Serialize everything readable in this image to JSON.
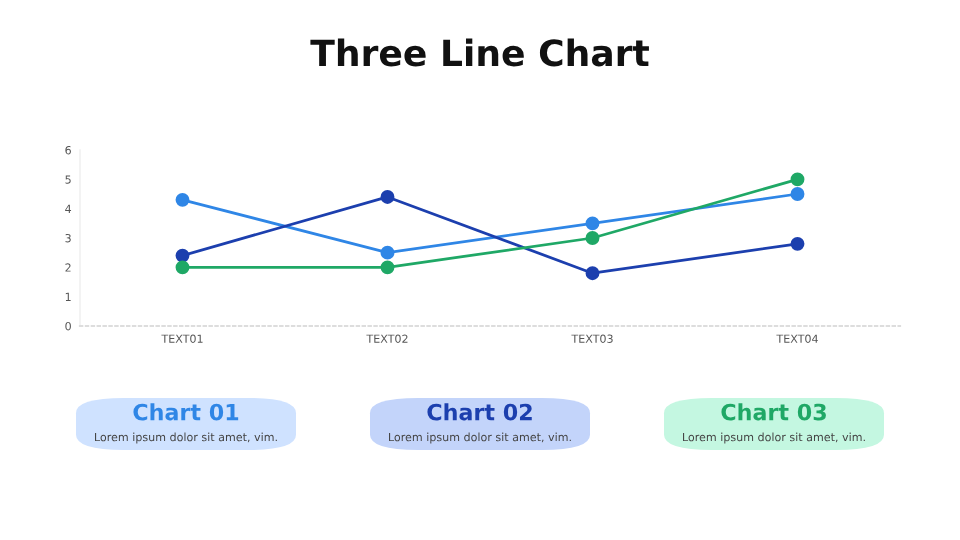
{
  "chart_data": {
    "type": "line",
    "title": "Three Line Chart",
    "categories": [
      "TEXT01",
      "TEXT02",
      "TEXT03",
      "TEXT04"
    ],
    "series": [
      {
        "name": "Chart 01",
        "color": "#2f86e6",
        "values": [
          4.3,
          2.5,
          3.5,
          4.5
        ]
      },
      {
        "name": "Chart 02",
        "color": "#1c3fae",
        "values": [
          2.4,
          4.4,
          1.8,
          2.8
        ]
      },
      {
        "name": "Chart 03",
        "color": "#1fa866",
        "values": [
          2,
          2,
          3,
          5
        ]
      }
    ],
    "ylim": [
      0,
      6
    ],
    "yticks": [
      0,
      1,
      2,
      3,
      4,
      5,
      6
    ],
    "grid": false,
    "marker": "circle",
    "line_style": "solid",
    "legend": "bottom",
    "annotations": [
      "Lorem ipsum dolor sit amet, vim.",
      "Lorem ipsum dolor sit amet, vim.",
      "Lorem ipsum dolor sit amet, vim."
    ]
  }
}
